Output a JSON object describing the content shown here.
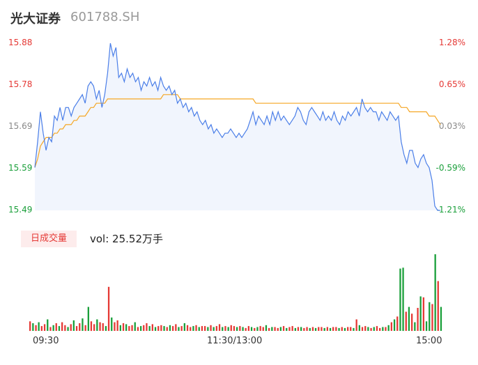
{
  "header": {
    "name": "光大证券",
    "code": "601788.SH"
  },
  "chart_data": {
    "type": "line",
    "title": "光大证券 601788.SH",
    "series": [
      {
        "name": "price",
        "color": "#4a7ee8",
        "values": [
          15.59,
          15.65,
          15.72,
          15.67,
          15.63,
          15.66,
          15.65,
          15.71,
          15.7,
          15.73,
          15.7,
          15.73,
          15.73,
          15.71,
          15.73,
          15.74,
          15.75,
          15.76,
          15.74,
          15.78,
          15.79,
          15.78,
          15.75,
          15.77,
          15.73,
          15.76,
          15.81,
          15.88,
          15.85,
          15.87,
          15.8,
          15.81,
          15.79,
          15.82,
          15.8,
          15.81,
          15.79,
          15.8,
          15.77,
          15.79,
          15.78,
          15.8,
          15.78,
          15.79,
          15.77,
          15.8,
          15.78,
          15.77,
          15.78,
          15.76,
          15.77,
          15.74,
          15.75,
          15.73,
          15.74,
          15.72,
          15.73,
          15.71,
          15.72,
          15.7,
          15.69,
          15.7,
          15.68,
          15.69,
          15.67,
          15.68,
          15.67,
          15.66,
          15.67,
          15.67,
          15.68,
          15.67,
          15.66,
          15.67,
          15.66,
          15.67,
          15.68,
          15.7,
          15.72,
          15.69,
          15.71,
          15.7,
          15.69,
          15.71,
          15.69,
          15.72,
          15.7,
          15.72,
          15.7,
          15.71,
          15.7,
          15.69,
          15.7,
          15.71,
          15.73,
          15.72,
          15.7,
          15.69,
          15.72,
          15.73,
          15.72,
          15.71,
          15.7,
          15.72,
          15.7,
          15.71,
          15.7,
          15.72,
          15.7,
          15.69,
          15.71,
          15.7,
          15.72,
          15.71,
          15.72,
          15.73,
          15.71,
          15.75,
          15.73,
          15.72,
          15.73,
          15.72,
          15.72,
          15.7,
          15.72,
          15.71,
          15.7,
          15.72,
          15.71,
          15.7,
          15.71,
          15.65,
          15.62,
          15.6,
          15.63,
          15.63,
          15.6,
          15.59,
          15.61,
          15.62,
          15.6,
          15.59,
          15.56,
          15.5,
          15.49,
          15.49
        ]
      },
      {
        "name": "avg",
        "color": "#f5a623",
        "values": [
          15.59,
          15.61,
          15.64,
          15.65,
          15.66,
          15.66,
          15.66,
          15.67,
          15.67,
          15.68,
          15.68,
          15.69,
          15.69,
          15.69,
          15.7,
          15.7,
          15.71,
          15.71,
          15.71,
          15.72,
          15.73,
          15.73,
          15.74,
          15.74,
          15.74,
          15.74,
          15.75,
          15.75,
          15.75,
          15.75,
          15.75,
          15.75,
          15.75,
          15.75,
          15.75,
          15.75,
          15.75,
          15.75,
          15.75,
          15.75,
          15.75,
          15.75,
          15.75,
          15.75,
          15.75,
          15.75,
          15.76,
          15.76,
          15.76,
          15.76,
          15.76,
          15.76,
          15.75,
          15.75,
          15.75,
          15.75,
          15.75,
          15.75,
          15.75,
          15.75,
          15.75,
          15.75,
          15.75,
          15.75,
          15.75,
          15.75,
          15.75,
          15.75,
          15.75,
          15.75,
          15.75,
          15.75,
          15.75,
          15.75,
          15.75,
          15.75,
          15.75,
          15.75,
          15.75,
          15.74,
          15.74,
          15.74,
          15.74,
          15.74,
          15.74,
          15.74,
          15.74,
          15.74,
          15.74,
          15.74,
          15.74,
          15.74,
          15.74,
          15.74,
          15.74,
          15.74,
          15.74,
          15.74,
          15.74,
          15.74,
          15.74,
          15.74,
          15.74,
          15.74,
          15.74,
          15.74,
          15.74,
          15.74,
          15.74,
          15.74,
          15.74,
          15.74,
          15.74,
          15.74,
          15.74,
          15.74,
          15.74,
          15.74,
          15.74,
          15.74,
          15.74,
          15.74,
          15.74,
          15.74,
          15.74,
          15.74,
          15.74,
          15.74,
          15.74,
          15.74,
          15.74,
          15.73,
          15.73,
          15.73,
          15.72,
          15.72,
          15.72,
          15.72,
          15.72,
          15.72,
          15.72,
          15.71,
          15.71,
          15.71,
          15.7,
          15.69
        ]
      }
    ],
    "ylim": [
      15.49,
      15.88
    ],
    "y_ticks_left": [
      "15.88",
      "15.78",
      "15.69",
      "15.59",
      "15.49"
    ],
    "y_ticks_right": [
      "1.28%",
      "0.65%",
      "0.03%",
      "-0.59%",
      "-1.21%"
    ],
    "x_ticks": [
      "09:30",
      "11:30/13:00",
      "15:00"
    ],
    "volume": {
      "label": "日成交量",
      "summary": "vol: 25.52万手",
      "values": [
        10,
        8,
        6,
        9,
        5,
        7,
        12,
        4,
        6,
        8,
        5,
        9,
        6,
        4,
        7,
        11,
        5,
        8,
        13,
        6,
        25,
        10,
        7,
        12,
        9,
        8,
        5,
        46,
        14,
        9,
        11,
        6,
        8,
        7,
        5,
        6,
        9,
        4,
        5,
        6,
        8,
        5,
        7,
        4,
        5,
        6,
        5,
        4,
        6,
        5,
        7,
        4,
        5,
        8,
        6,
        4,
        5,
        6,
        4,
        5,
        5,
        4,
        6,
        4,
        5,
        7,
        4,
        5,
        4,
        6,
        5,
        4,
        5,
        4,
        3,
        5,
        4,
        3,
        4,
        5,
        4,
        6,
        3,
        4,
        4,
        3,
        4,
        5,
        3,
        4,
        5,
        3,
        4,
        4,
        3,
        4,
        3,
        4,
        3,
        4,
        4,
        3,
        4,
        3,
        4,
        4,
        3,
        4,
        3,
        4,
        4,
        3,
        12,
        6,
        4,
        5,
        4,
        3,
        4,
        5,
        3,
        4,
        4,
        6,
        9,
        12,
        15,
        65,
        66,
        20,
        25,
        18,
        9,
        24,
        36,
        35,
        10,
        30,
        28,
        80,
        52,
        25
      ],
      "up": [
        1,
        0,
        1,
        0,
        1,
        1,
        0,
        1,
        0,
        1,
        0,
        1,
        1,
        0,
        1,
        0,
        1,
        1,
        0,
        1,
        0,
        1,
        1,
        0,
        1,
        1,
        0,
        1,
        0,
        1,
        1,
        0,
        1,
        0,
        1,
        1,
        0,
        1,
        0,
        1,
        1,
        0,
        1,
        0,
        1,
        1,
        0,
        1,
        0,
        1,
        1,
        0,
        1,
        0,
        1,
        1,
        0,
        1,
        0,
        1,
        1,
        0,
        1,
        0,
        1,
        1,
        0,
        1,
        0,
        1,
        1,
        0,
        1,
        0,
        1,
        1,
        0,
        1,
        0,
        1,
        1,
        0,
        1,
        0,
        1,
        1,
        0,
        1,
        0,
        1,
        1,
        0,
        1,
        0,
        1,
        1,
        0,
        1,
        0,
        1,
        1,
        0,
        1,
        0,
        1,
        1,
        0,
        1,
        0,
        1,
        1,
        0,
        1,
        0,
        1,
        1,
        0,
        1,
        0,
        1,
        1,
        0,
        1,
        0,
        1,
        0,
        1,
        0,
        0,
        1,
        0,
        1,
        0,
        1,
        0,
        1,
        0,
        0,
        1,
        0,
        1,
        0
      ]
    }
  },
  "colors": {
    "up": "#e53935",
    "down": "#1a9f3a",
    "flat": "#888888",
    "price": "#4a7ee8",
    "avg": "#f5a623"
  }
}
